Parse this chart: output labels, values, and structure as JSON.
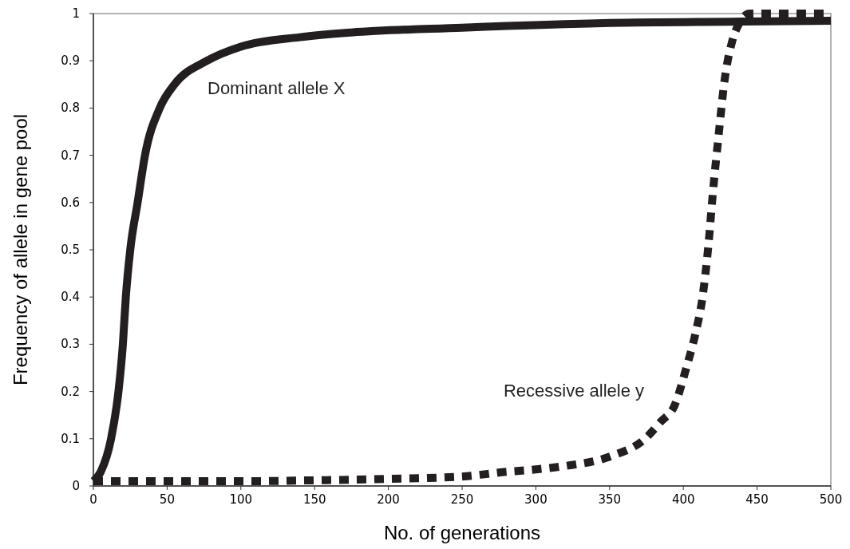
{
  "chart_data": {
    "type": "line",
    "xlabel": "No. of generations",
    "ylabel": "Frequency of allele in gene pool",
    "xlim": [
      0,
      500
    ],
    "xticks": [
      0,
      50,
      100,
      150,
      200,
      250,
      300,
      350,
      400,
      450,
      500
    ],
    "ylim": [
      0,
      1
    ],
    "yticks": [
      0,
      0.1,
      0.2,
      0.3,
      0.4,
      0.5,
      0.6,
      0.7,
      0.8,
      0.9,
      1
    ],
    "grid": false,
    "marker": "none",
    "series": [
      {
        "name": "Dominant allele X",
        "color": "#231f20",
        "line_style": "solid",
        "x": [
          0,
          5,
          12,
          17,
          20,
          22,
          25,
          30,
          35,
          45,
          55,
          77,
          100,
          140,
          175,
          250,
          350,
          440,
          500
        ],
        "values": [
          0.01,
          0.03,
          0.1,
          0.2,
          0.3,
          0.4,
          0.5,
          0.6,
          0.7,
          0.8,
          0.85,
          0.9,
          0.93,
          0.95,
          0.96,
          0.97,
          0.98,
          0.983,
          0.985
        ]
      },
      {
        "name": "Recessive allele y",
        "color": "#231f20",
        "line_style": "dashed",
        "x": [
          0,
          100,
          150,
          200,
          250,
          280,
          300,
          319,
          350,
          374,
          385,
          394,
          402,
          408,
          413,
          417,
          420,
          424,
          428,
          433,
          438,
          445,
          500
        ],
        "values": [
          0.01,
          0.01,
          0.012,
          0.015,
          0.02,
          0.03,
          0.035,
          0.042,
          0.062,
          0.1,
          0.137,
          0.17,
          0.25,
          0.32,
          0.4,
          0.51,
          0.62,
          0.745,
          0.86,
          0.94,
          0.98,
          1,
          1
        ]
      }
    ]
  }
}
